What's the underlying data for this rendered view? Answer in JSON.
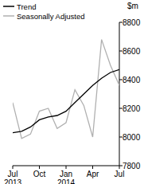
{
  "chart_data": {
    "type": "line",
    "y_label": "$m",
    "categories": [
      "Jul 2013",
      null,
      null,
      "Oct",
      null,
      null,
      "Jan 2014",
      null,
      null,
      "Apr",
      null,
      null,
      "Jul"
    ],
    "series": [
      {
        "name": "Trend",
        "color": "#000000",
        "values": [
          8030,
          8040,
          8070,
          8120,
          8140,
          8150,
          8180,
          8240,
          8300,
          8360,
          8410,
          8450,
          8470
        ]
      },
      {
        "name": "Seasonally Adjusted",
        "color": "#b0b0b0",
        "values": [
          8240,
          7990,
          8020,
          8180,
          8200,
          8060,
          8100,
          8330,
          8220,
          8000,
          8680,
          8500,
          8360
        ]
      }
    ],
    "ylim": [
      7800,
      8800
    ],
    "yticks": [
      7800,
      8000,
      8200,
      8400,
      8600,
      8800
    ],
    "legend": "top-left",
    "grid": false
  }
}
